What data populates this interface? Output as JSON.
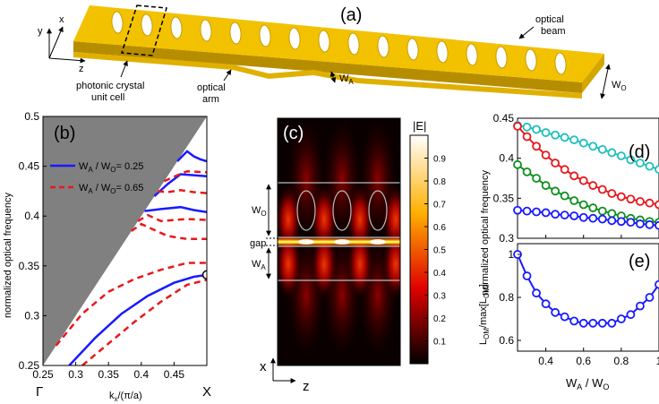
{
  "panel_a": {
    "label": "(a)",
    "axis_y": "y",
    "axis_x": "x",
    "axis_z": "z",
    "unit_cell_line1": "photonic crystal",
    "unit_cell_line2": "unit cell",
    "arm_line1": "optical",
    "arm_line2": "arm",
    "beam_line1": "optical",
    "beam_line2": "beam",
    "wa_main": "W",
    "wa_sub": "A",
    "wo_main": "W",
    "wo_sub": "O",
    "colors": {
      "beam": "#f2c200",
      "beam_dark": "#b78d00",
      "hole": "#ffffff"
    }
  },
  "panel_c": {
    "label": "(c)",
    "colorbar_title": "|E|",
    "colorbar_ticks": [
      "0.9",
      "0.8",
      "0.7",
      "0.6",
      "0.5",
      "0.4",
      "0.3",
      "0.2",
      "0.1"
    ],
    "wo_main": "W",
    "wo_sub": "O",
    "gap": "gap",
    "wa_main": "W",
    "wa_sub": "A",
    "axis_x": "x",
    "axis_z": "z"
  },
  "chart_data": [
    {
      "id": "b",
      "type": "line",
      "panel_label": "(b)",
      "xlabel_main": "k",
      "xlabel_sub": "x",
      "xlabel_rest": "/(π/a)",
      "ylabel": "normalized optical frequency",
      "xlim": [
        0.25,
        0.5
      ],
      "ylim": [
        0.25,
        0.5
      ],
      "xticks": [
        "0.25",
        "0.3",
        "0.35",
        "0.4",
        "0.45"
      ],
      "yticks": [
        "0.25",
        "0.3",
        "0.35",
        "0.4",
        "0.45",
        "0.5"
      ],
      "x_point_labels": [
        "Γ",
        "X"
      ],
      "light_cone": "shaded region above light line ω = k",
      "legend": [
        {
          "main": "W",
          "sub1": "A",
          "mid": " / W",
          "sub2": "O",
          "rest": "= 0.25",
          "style": "solid",
          "color": "#1a1aff"
        },
        {
          "main": "W",
          "sub1": "A",
          "mid": " / W",
          "sub2": "O",
          "rest": "= 0.65",
          "style": "dashed",
          "color": "#e8181c"
        }
      ],
      "series": [
        {
          "name": "WA/WO=0.25 band 1",
          "style": "solid",
          "color": "#1a1aff",
          "x": [
            0.29,
            0.33,
            0.37,
            0.41,
            0.45,
            0.48,
            0.5
          ],
          "y": [
            0.25,
            0.278,
            0.302,
            0.32,
            0.333,
            0.339,
            0.341
          ]
        },
        {
          "name": "WA/WO=0.25 band 2",
          "style": "solid",
          "color": "#1a1aff",
          "x": [
            0.405,
            0.43,
            0.46,
            0.48,
            0.5
          ],
          "y": [
            0.405,
            0.407,
            0.409,
            0.406,
            0.404
          ]
        },
        {
          "name": "WA/WO=0.25 band 3",
          "style": "solid",
          "color": "#1a1aff",
          "x": [
            0.42,
            0.44,
            0.46,
            0.48,
            0.5
          ],
          "y": [
            0.42,
            0.432,
            0.442,
            0.441,
            0.44
          ]
        },
        {
          "name": "WA/WO=0.25 band 4",
          "style": "solid",
          "color": "#1a1aff",
          "x": [
            0.455,
            0.47,
            0.48,
            0.49,
            0.5
          ],
          "y": [
            0.455,
            0.465,
            0.46,
            0.457,
            0.455
          ]
        },
        {
          "name": "WA/WO=0.65 band 1",
          "style": "dashed",
          "color": "#e8181c",
          "x": [
            0.31,
            0.35,
            0.39,
            0.43,
            0.47,
            0.5
          ],
          "y": [
            0.25,
            0.272,
            0.294,
            0.314,
            0.331,
            0.336
          ]
        },
        {
          "name": "WA/WO=0.65 band 2",
          "style": "dashed",
          "color": "#e8181c",
          "x": [
            0.27,
            0.31,
            0.35,
            0.39,
            0.43,
            0.47,
            0.5
          ],
          "y": [
            0.27,
            0.302,
            0.324,
            0.337,
            0.346,
            0.353,
            0.353
          ]
        },
        {
          "name": "WA/WO=0.65 band 3",
          "style": "dashed",
          "color": "#e8181c",
          "x": [
            0.385,
            0.4,
            0.42,
            0.44,
            0.47,
            0.5
          ],
          "y": [
            0.385,
            0.392,
            0.386,
            0.38,
            0.377,
            0.377
          ]
        },
        {
          "name": "WA/WO=0.65 band 4",
          "style": "dashed",
          "color": "#e8181c",
          "x": [
            0.395,
            0.41,
            0.43,
            0.45,
            0.47,
            0.5
          ],
          "y": [
            0.395,
            0.401,
            0.395,
            0.396,
            0.397,
            0.396
          ]
        },
        {
          "name": "WA/WO=0.65 band 5",
          "style": "dashed",
          "color": "#e8181c",
          "x": [
            0.425,
            0.44,
            0.46,
            0.48,
            0.5
          ],
          "y": [
            0.425,
            0.424,
            0.426,
            0.424,
            0.423
          ]
        },
        {
          "name": "WA/WO=0.65 band 6",
          "style": "dashed",
          "color": "#e8181c",
          "x": [
            0.435,
            0.455,
            0.47,
            0.5
          ],
          "y": [
            0.435,
            0.441,
            0.445,
            0.444
          ]
        }
      ],
      "marker": {
        "x": 0.5,
        "y": 0.341
      }
    },
    {
      "id": "d",
      "type": "line",
      "panel_label": "(d)",
      "ylabel": "normalized optical frequency",
      "xlim": [
        0.25,
        1.0
      ],
      "ylim": [
        0.3,
        0.45
      ],
      "yticks": [
        "0.3",
        "0.35",
        "0.4",
        "0.45"
      ],
      "x": [
        0.25,
        0.3,
        0.35,
        0.4,
        0.45,
        0.5,
        0.55,
        0.6,
        0.65,
        0.7,
        0.75,
        0.8,
        0.85,
        0.9,
        0.95,
        1.0
      ],
      "series": [
        {
          "name": "cyan",
          "color": "#1fbfbf",
          "values": [
            0.441,
            0.439,
            0.436,
            0.432,
            0.429,
            0.426,
            0.423,
            0.419,
            0.415,
            0.411,
            0.407,
            0.403,
            0.398,
            0.394,
            0.39,
            0.386
          ]
        },
        {
          "name": "red",
          "color": "#e8181c",
          "values": [
            0.44,
            0.427,
            0.415,
            0.404,
            0.394,
            0.386,
            0.378,
            0.372,
            0.366,
            0.361,
            0.356,
            0.352,
            0.349,
            0.346,
            0.344,
            0.342
          ]
        },
        {
          "name": "green",
          "color": "#0f8f1f",
          "values": [
            0.392,
            0.383,
            0.375,
            0.366,
            0.359,
            0.353,
            0.347,
            0.342,
            0.338,
            0.334,
            0.331,
            0.328,
            0.325,
            0.323,
            0.321,
            0.32
          ]
        },
        {
          "name": "blue",
          "color": "#1a1aff",
          "values": [
            0.335,
            0.334,
            0.333,
            0.332,
            0.33,
            0.329,
            0.328,
            0.326,
            0.325,
            0.324,
            0.322,
            0.321,
            0.32,
            0.318,
            0.317,
            0.316
          ]
        }
      ]
    },
    {
      "id": "e",
      "type": "line",
      "panel_label": "(e)",
      "ylabel_main": "L",
      "ylabel_sub": "OM",
      "ylabel_rest": "/max[L",
      "ylabel_sub2": "OM",
      "ylabel_end": "]",
      "xlabel_main": "W",
      "xlabel_sub1": "A",
      "xlabel_mid": " / W",
      "xlabel_sub2": "O",
      "xlim": [
        0.25,
        1.0
      ],
      "ylim": [
        0.55,
        1.05
      ],
      "xticks": [
        "0.4",
        "0.6",
        "0.8",
        "1"
      ],
      "yticks": [
        "0.6",
        "0.8",
        "1"
      ],
      "series": [
        {
          "name": "L_OM",
          "color": "#1a1aff",
          "x": [
            0.25,
            0.3,
            0.35,
            0.4,
            0.45,
            0.5,
            0.55,
            0.6,
            0.65,
            0.7,
            0.75,
            0.8,
            0.85,
            0.9,
            0.95,
            1.0
          ],
          "values": [
            1.0,
            0.9,
            0.82,
            0.77,
            0.73,
            0.71,
            0.69,
            0.68,
            0.68,
            0.68,
            0.68,
            0.7,
            0.72,
            0.76,
            0.8,
            0.86
          ]
        }
      ]
    }
  ]
}
